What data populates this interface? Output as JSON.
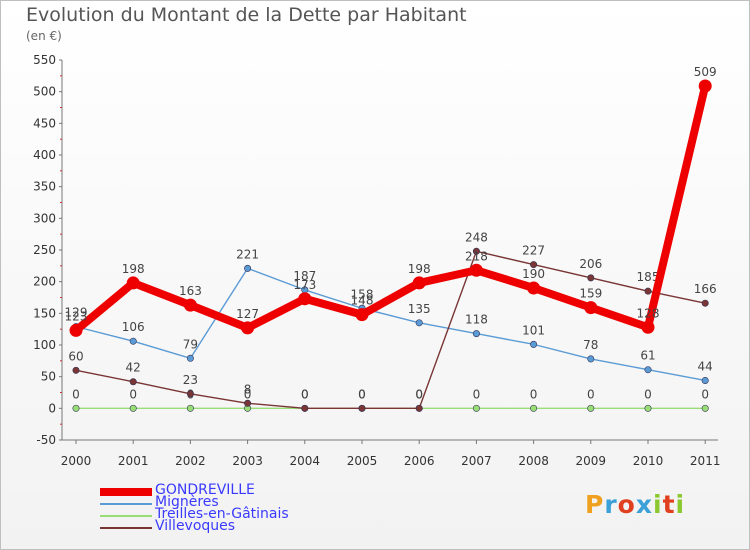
{
  "title": "Evolution du Montant de la Dette par Habitant",
  "subtitle": "(en €)",
  "logo": {
    "text": "Proxiti",
    "colors": [
      "#f0a020",
      "#3ca0d8",
      "#e04020",
      "#3ca0d8",
      "#8cc830",
      "#e04020",
      "#8cc830"
    ]
  },
  "chart_data": {
    "type": "line",
    "title": "Evolution du Montant de la Dette par Habitant",
    "ylabel": "(en €)",
    "xlabel": "",
    "x": [
      "2000",
      "2001",
      "2002",
      "2003",
      "2004",
      "2005",
      "2006",
      "2007",
      "2008",
      "2009",
      "2010",
      "2011"
    ],
    "ylim": [
      -50,
      550
    ],
    "yticks": [
      -50,
      0,
      50,
      100,
      150,
      200,
      250,
      300,
      350,
      400,
      450,
      500,
      550
    ],
    "grid": false,
    "legend": "bottom-left",
    "series": [
      {
        "name": "GONDREVILLE",
        "color": "#ee0000",
        "bold": true,
        "values": [
          123,
          198,
          163,
          127,
          173,
          148,
          198,
          218,
          190,
          159,
          128,
          509
        ]
      },
      {
        "name": "Mignères",
        "color": "#5b9bd5",
        "values": [
          129,
          106,
          79,
          221,
          187,
          158,
          135,
          118,
          101,
          78,
          61,
          44
        ]
      },
      {
        "name": "Treilles-en-Gâtinais",
        "color": "#99dd77",
        "values": [
          0,
          0,
          0,
          0,
          0,
          0,
          0,
          0,
          0,
          0,
          0,
          0
        ]
      },
      {
        "name": "Villevoques",
        "color": "#7a3535",
        "values": [
          60,
          42,
          23,
          8,
          0,
          0,
          0,
          248,
          227,
          206,
          185,
          166
        ]
      }
    ]
  }
}
